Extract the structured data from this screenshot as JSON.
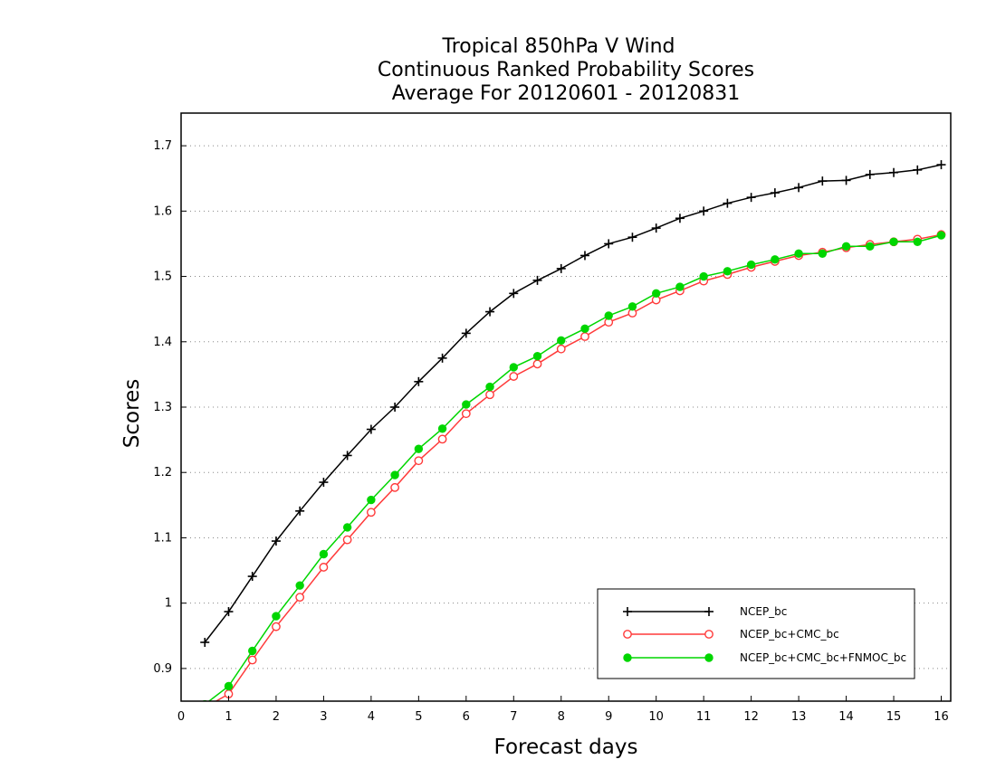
{
  "chart_data": {
    "type": "line",
    "title_lines": [
      "Tropical 850hPa V Wind",
      "Continuous Ranked Probability Scores",
      "Average For 20120601 - 20120831"
    ],
    "xlabel": "Forecast days",
    "ylabel": "Scores",
    "xlim": [
      0,
      16.2
    ],
    "ylim": [
      0.85,
      1.75
    ],
    "xticks": [
      0,
      1,
      2,
      3,
      4,
      5,
      6,
      7,
      8,
      9,
      10,
      11,
      12,
      13,
      14,
      15,
      16
    ],
    "yticks": [
      0.9,
      1.0,
      1.1,
      1.2,
      1.3,
      1.4,
      1.5,
      1.6,
      1.7
    ],
    "ytick_labels": [
      "0.9",
      "1",
      "1.1",
      "1.2",
      "1.3",
      "1.4",
      "1.5",
      "1.6",
      "1.7"
    ],
    "grid": "horizontal dotted",
    "legend_position": "bottom-right",
    "x": [
      0.5,
      1,
      1.5,
      2,
      2.5,
      3,
      3.5,
      4,
      4.5,
      5,
      5.5,
      6,
      6.5,
      7,
      7.5,
      8,
      8.5,
      9,
      9.5,
      10,
      10.5,
      11,
      11.5,
      12,
      12.5,
      13,
      13.5,
      14,
      14.5,
      15,
      15.5,
      16
    ],
    "series": [
      {
        "name": "NCEP_bc",
        "color": "#000000",
        "marker": "plus",
        "values": [
          0.94,
          0.987,
          1.041,
          1.095,
          1.141,
          1.185,
          1.226,
          1.266,
          1.3,
          1.339,
          1.375,
          1.413,
          1.446,
          1.474,
          1.494,
          1.512,
          1.532,
          1.55,
          1.56,
          1.574,
          1.589,
          1.6,
          1.612,
          1.621,
          1.628,
          1.636,
          1.646,
          1.647,
          1.656,
          1.659,
          1.663,
          1.671
        ]
      },
      {
        "name": "NCEP_bc+CMC_bc",
        "color": "#ff3a3a",
        "marker": "open-circle",
        "values": [
          0.84,
          0.861,
          0.913,
          0.964,
          1.009,
          1.055,
          1.097,
          1.139,
          1.177,
          1.218,
          1.251,
          1.29,
          1.319,
          1.347,
          1.366,
          1.389,
          1.408,
          1.43,
          1.444,
          1.464,
          1.478,
          1.493,
          1.503,
          1.514,
          1.523,
          1.532,
          1.537,
          1.544,
          1.549,
          1.553,
          1.557,
          1.564
        ]
      },
      {
        "name": "NCEP_bc+CMC_bc+FNMOC_bc",
        "color": "#00d600",
        "marker": "filled-circle",
        "values": [
          0.845,
          0.873,
          0.927,
          0.98,
          1.027,
          1.075,
          1.116,
          1.158,
          1.196,
          1.236,
          1.267,
          1.304,
          1.331,
          1.361,
          1.378,
          1.402,
          1.42,
          1.44,
          1.454,
          1.474,
          1.484,
          1.5,
          1.508,
          1.518,
          1.526,
          1.535,
          1.535,
          1.546,
          1.546,
          1.553,
          1.553,
          1.563
        ]
      }
    ]
  }
}
